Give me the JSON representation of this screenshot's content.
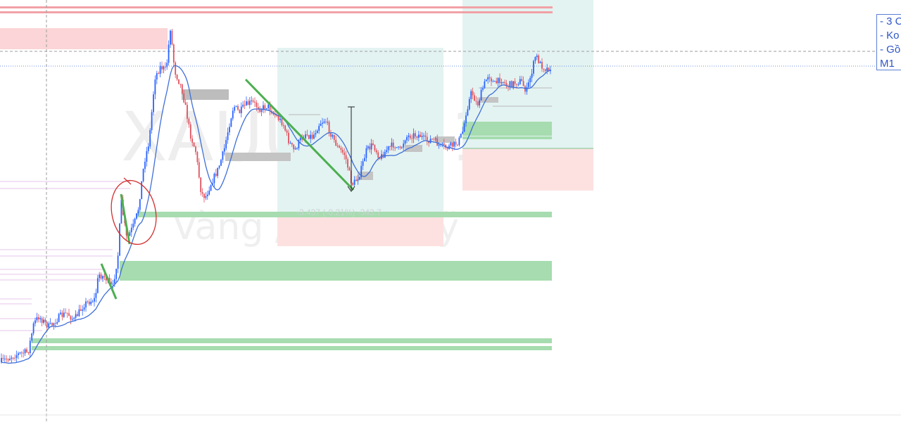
{
  "chart_data": {
    "type": "candlestick",
    "watermark": {
      "symbol": "XAUUSD, 1",
      "description": "Vàng / Đô la Mỹ"
    },
    "legend": [
      "- 3 C",
      "- Ko",
      "- Gồ",
      "M1"
    ],
    "measure_label": "-3.437 (-0.21%) -343.7",
    "colors": {
      "up": "#2962ff",
      "down": "#e0515e",
      "ma": "#3f6fd8",
      "supply": "#f9d1d4",
      "demand": "#8fd49c",
      "trend": "#4caf50",
      "circle": "#d32f2f"
    }
  }
}
